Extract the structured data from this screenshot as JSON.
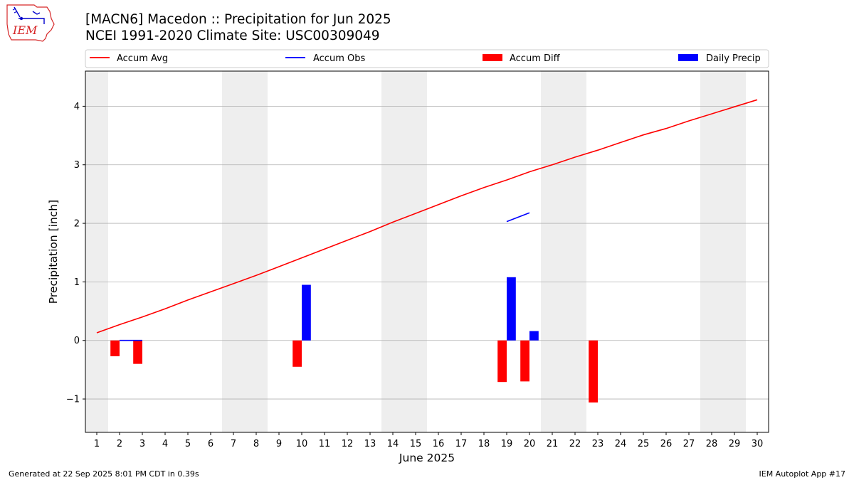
{
  "header": {
    "logo_text": "IEM",
    "title_line1": "[MACN6] Macedon :: Precipitation for Jun 2025",
    "title_line2": "NCEI 1991-2020 Climate Site: USC00309049"
  },
  "footer": {
    "left": "Generated at 22 Sep 2025 8:01 PM CDT in 0.39s",
    "right": "IEM Autoplot App #17"
  },
  "colors": {
    "accum_avg": "#ff0000",
    "accum_obs": "#0000ff",
    "accum_diff": "#ff0000",
    "daily_precip": "#0000ff",
    "weekend_shade": "#eeeeee",
    "grid": "#b0b0b0"
  },
  "chart_data": {
    "type": "bar",
    "xlabel": "June 2025",
    "ylabel": "Precipitation [inch]",
    "xlim": [
      0.5,
      30.5
    ],
    "ylim": [
      -1.57,
      4.6
    ],
    "yticks": [
      -1,
      0,
      1,
      2,
      3,
      4
    ],
    "grid": "horizontal",
    "legend_position": "top",
    "legend": [
      "Accum Avg",
      "Accum Obs",
      "Accum Diff",
      "Daily Precip"
    ],
    "days": [
      1,
      2,
      3,
      4,
      5,
      6,
      7,
      8,
      9,
      10,
      11,
      12,
      13,
      14,
      15,
      16,
      17,
      18,
      19,
      20,
      21,
      22,
      23,
      24,
      25,
      26,
      27,
      28,
      29,
      30
    ],
    "weekend_days": [
      1,
      7,
      8,
      14,
      15,
      21,
      22,
      28,
      29
    ],
    "accum_avg": [
      0.13,
      0.27,
      0.4,
      0.54,
      0.69,
      0.83,
      0.97,
      1.11,
      1.26,
      1.41,
      1.56,
      1.71,
      1.86,
      2.02,
      2.17,
      2.32,
      2.47,
      2.61,
      2.74,
      2.88,
      3.0,
      3.13,
      3.25,
      3.38,
      3.51,
      3.62,
      3.75,
      3.87,
      3.99,
      4.11
    ],
    "accum_obs": [
      {
        "days": [
          2,
          3
        ],
        "values": [
          0.0,
          0.0
        ]
      },
      {
        "days": [
          19,
          20
        ],
        "values": [
          2.03,
          2.18
        ]
      }
    ],
    "accum_diff": [
      {
        "day": 2,
        "value": -0.27
      },
      {
        "day": 3,
        "value": -0.4
      },
      {
        "day": 10,
        "value": -0.45
      },
      {
        "day": 19,
        "value": -0.71
      },
      {
        "day": 20,
        "value": -0.7
      },
      {
        "day": 23,
        "value": -1.06
      }
    ],
    "daily_precip": [
      {
        "day": 10,
        "value": 0.95
      },
      {
        "day": 19,
        "value": 1.08
      },
      {
        "day": 20,
        "value": 0.16
      }
    ]
  }
}
